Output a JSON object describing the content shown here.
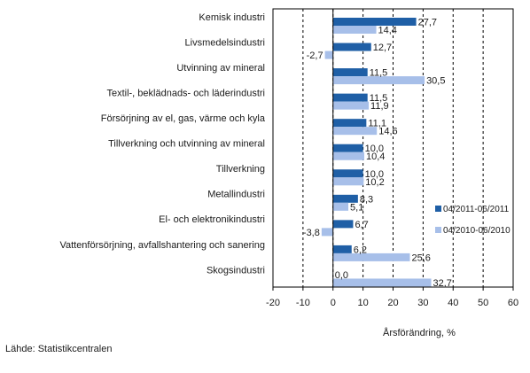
{
  "source": "Lähde: Statistikcentralen",
  "chart_data": {
    "type": "bar",
    "orientation": "horizontal",
    "title": "",
    "xlabel": "Årsförändring, %",
    "ylabel": "",
    "xlim": [
      -20,
      60
    ],
    "xticks": [
      -20,
      -10,
      0,
      10,
      20,
      30,
      40,
      50,
      60
    ],
    "grid": "vertical",
    "legend_position": "right",
    "categories": [
      "Kemisk industri",
      "Livsmedelsindustri",
      "Utvinning av mineral",
      "Textil-, beklädnads- och läderindustri",
      "Försörjning av el, gas, värme och kyla",
      "Tillverkning och utvinning av mineral",
      "Tillverkning",
      "Metallindustri",
      "El- och elektronikindustri",
      "Vattenförsörjning, avfallshantering och sanering",
      "Skogsindustri"
    ],
    "series": [
      {
        "name": "04/2011-06/2011",
        "color": "#1f5fa6",
        "values": [
          27.7,
          12.7,
          11.5,
          11.5,
          11.1,
          10.0,
          10.0,
          8.3,
          6.7,
          6.2,
          0.0
        ],
        "labels": [
          "27,7",
          "12,7",
          "11,5",
          "11,5",
          "11,1",
          "10,0",
          "10,0",
          "8,3",
          "6,7",
          "6,2",
          "0,0"
        ]
      },
      {
        "name": "04/2010-06/2010",
        "color": "#a7bfe9",
        "values": [
          14.4,
          -2.7,
          30.5,
          11.9,
          14.6,
          10.4,
          10.2,
          5.1,
          -3.8,
          25.6,
          32.7
        ],
        "labels": [
          "14,4",
          "-2,7",
          "30,5",
          "11,9",
          "14,6",
          "10,4",
          "10,2",
          "5,1",
          "-3,8",
          "25,6",
          "32,7"
        ]
      }
    ],
    "tick_labels": [
      "-20",
      "-10",
      "0",
      "10",
      "20",
      "30",
      "40",
      "50",
      "60"
    ]
  }
}
